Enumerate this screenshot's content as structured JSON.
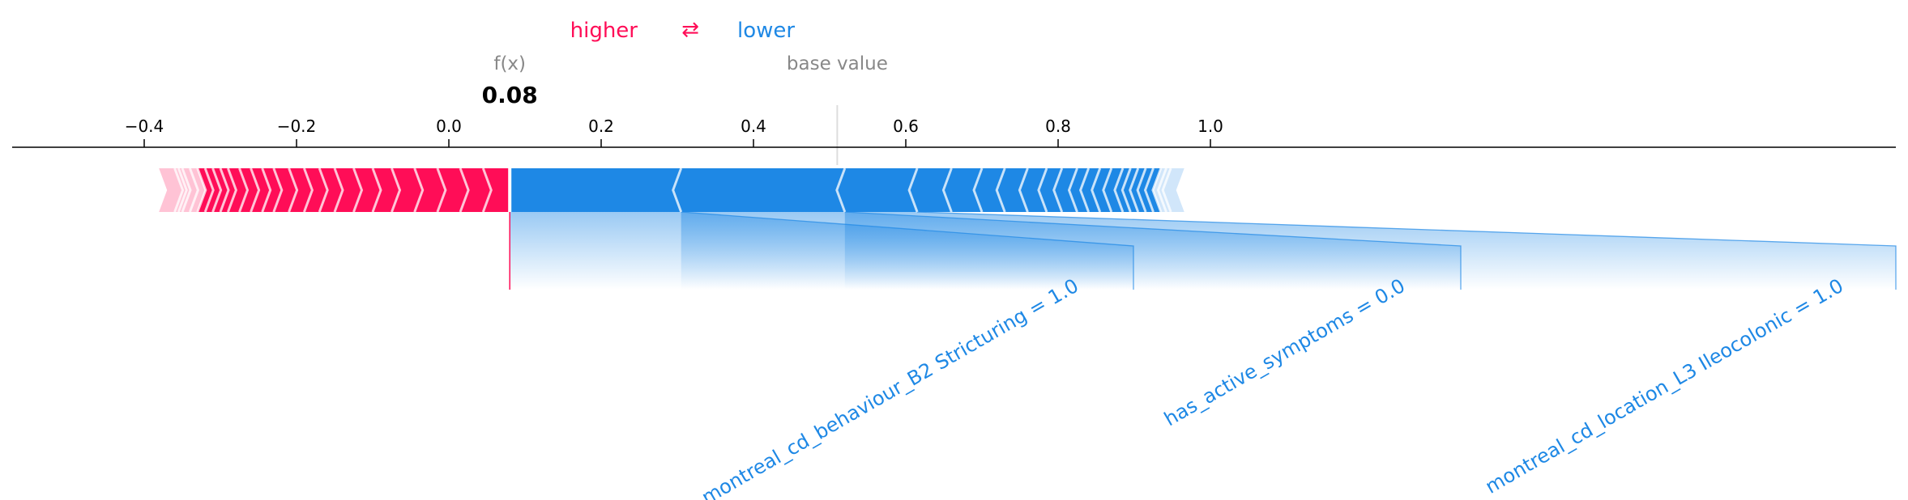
{
  "legend": {
    "higher": "higher",
    "lower": "lower",
    "arrow_glyph": "⇄",
    "higher_color": "#ff0d57",
    "lower_color": "#1e88e5"
  },
  "labels": {
    "fx": "f(x)",
    "fx_value": "0.08",
    "base_value": "base value"
  },
  "chart_data": {
    "type": "force",
    "title": "",
    "xlim": [
      -0.5,
      1.15
    ],
    "ticks": [
      {
        "value": -0.4,
        "label": "−0.4"
      },
      {
        "value": -0.2,
        "label": "−0.2"
      },
      {
        "value": 0.0,
        "label": "0.0"
      },
      {
        "value": 0.2,
        "label": "0.2"
      },
      {
        "value": 0.4,
        "label": "0.4"
      },
      {
        "value": 0.6,
        "label": "0.6"
      },
      {
        "value": 0.8,
        "label": "0.8"
      },
      {
        "value": 1.0,
        "label": "1.0"
      }
    ],
    "output_value": 0.08,
    "base_value": 0.51,
    "positive_range": [
      -0.37,
      0.08
    ],
    "negative_range": [
      0.08,
      0.955
    ],
    "positive_segment_bounds": [
      0.08,
      0.045,
      0.015,
      -0.015,
      -0.045,
      -0.075,
      -0.1,
      -0.125,
      -0.15,
      -0.17,
      -0.19,
      -0.21,
      -0.23,
      -0.245,
      -0.26,
      -0.275,
      -0.29,
      -0.3,
      -0.31,
      -0.32,
      -0.33,
      -0.34,
      -0.35,
      -0.355,
      -0.36,
      -0.37
    ],
    "negative_segment_bounds": [
      0.08,
      0.305,
      0.52,
      0.615,
      0.66,
      0.7,
      0.73,
      0.76,
      0.785,
      0.805,
      0.825,
      0.84,
      0.855,
      0.87,
      0.885,
      0.895,
      0.905,
      0.915,
      0.925,
      0.935,
      0.942,
      0.948,
      0.955
    ],
    "labeled_features": [
      {
        "name": "montreal_cd_behaviour_B2 Stricturing = 1.0",
        "from": 0.08,
        "to": 0.305
      },
      {
        "name": "has_active_symptoms = 0.0",
        "from": 0.305,
        "to": 0.52
      },
      {
        "name": "montreal_cd_location_L3 Ileocolonic = 1.0",
        "from": 0.52,
        "to": 0.615
      }
    ]
  }
}
